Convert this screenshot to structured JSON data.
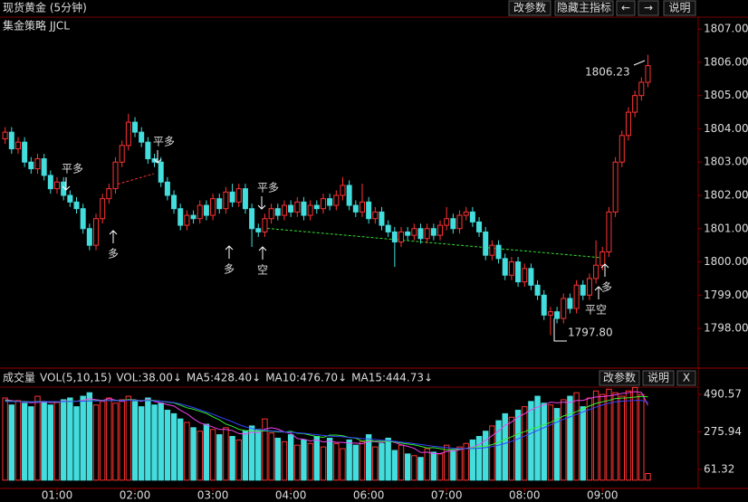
{
  "chart_data": [
    {
      "type": "candlestick",
      "title": "现货黄金 (5分钟)",
      "subtitle": "集金策略 JJCL",
      "buttons": [
        "改参数",
        "隐藏主指标",
        "←",
        "→",
        "说明"
      ],
      "up_color": "#ff3333",
      "down_color": "#44dddd",
      "categories": [
        null,
        null,
        null,
        null,
        null,
        null,
        null,
        null,
        "01:00",
        null,
        null,
        null,
        null,
        null,
        null,
        null,
        null,
        null,
        null,
        null,
        "02:00",
        null,
        null,
        null,
        null,
        null,
        null,
        null,
        null,
        null,
        null,
        null,
        "03:00",
        null,
        null,
        null,
        null,
        null,
        null,
        null,
        null,
        null,
        null,
        null,
        "04:00",
        null,
        null,
        null,
        null,
        null,
        null,
        null,
        null,
        null,
        null,
        null,
        "06:00",
        null,
        null,
        null,
        null,
        null,
        null,
        null,
        null,
        null,
        null,
        null,
        "07:00",
        null,
        null,
        null,
        null,
        null,
        null,
        null,
        null,
        null,
        null,
        null,
        "08:00",
        null,
        null,
        null,
        null,
        null,
        null,
        null,
        null,
        null,
        null,
        null,
        "09:00",
        null,
        null,
        null,
        null,
        null,
        null,
        null
      ],
      "open": [
        1803.7,
        1803.9,
        1803.4,
        1803.6,
        1803.0,
        1802.8,
        1803.1,
        1802.6,
        1802.2,
        1802.4,
        1802.0,
        1801.8,
        1801.6,
        1801.0,
        1800.5,
        1801.3,
        1801.9,
        1802.2,
        1803.0,
        1803.5,
        1804.2,
        1803.9,
        1803.6,
        1803.1,
        1803.0,
        1802.4,
        1802.0,
        1801.6,
        1801.1,
        1801.4,
        1801.3,
        1801.7,
        1801.4,
        1801.9,
        1801.6,
        1802.1,
        1801.8,
        1802.2,
        1801.6,
        1801.0,
        1800.9,
        1801.3,
        1801.6,
        1801.4,
        1801.7,
        1801.5,
        1801.8,
        1801.4,
        1801.7,
        1801.6,
        1801.9,
        1801.7,
        1802.0,
        1802.3,
        1801.7,
        1801.5,
        1801.8,
        1801.3,
        1801.5,
        1801.1,
        1800.9,
        1800.6,
        1800.9,
        1800.8,
        1801.0,
        1800.7,
        1801.0,
        1800.8,
        1801.1,
        1801.3,
        1801.0,
        1801.4,
        1801.5,
        1801.2,
        1800.9,
        1800.2,
        1800.5,
        1800.1,
        1799.6,
        1800.0,
        1799.4,
        1799.8,
        1799.3,
        1799.0,
        1798.4,
        1798.5,
        1798.3,
        1798.9,
        1798.6,
        1799.3,
        1799.0,
        1799.5,
        1799.9,
        1800.3,
        1801.5,
        1803.0,
        1803.8,
        1804.5,
        1805.0,
        1805.4
      ],
      "high": [
        1804.05,
        1804.05,
        1803.75,
        1803.75,
        1803.15,
        1803.25,
        1803.25,
        1802.75,
        1802.55,
        1802.55,
        1802.15,
        1801.95,
        1801.75,
        1801.15,
        1801.45,
        1802.05,
        1802.35,
        1803.15,
        1803.65,
        1804.45,
        1804.35,
        1804.05,
        1803.75,
        1803.25,
        1803.15,
        1802.55,
        1802.15,
        1801.75,
        1801.55,
        1801.55,
        1801.85,
        1801.85,
        1802.05,
        1802.05,
        1802.25,
        1802.35,
        1802.35,
        1802.35,
        1801.75,
        1801.15,
        1801.45,
        1801.75,
        1801.75,
        1801.85,
        1801.85,
        1801.95,
        1801.95,
        1801.85,
        1801.85,
        1802.05,
        1802.05,
        1802.15,
        1802.55,
        1802.45,
        1801.85,
        1802.35,
        1801.95,
        1801.65,
        1801.65,
        1801.25,
        1801.05,
        1801.05,
        1801.05,
        1801.15,
        1801.15,
        1801.15,
        1801.15,
        1801.25,
        1801.65,
        1801.45,
        1801.55,
        1801.65,
        1801.65,
        1801.35,
        1801.05,
        1800.65,
        1800.65,
        1800.25,
        1800.15,
        1800.15,
        1799.95,
        1799.95,
        1799.45,
        1799.15,
        1798.65,
        1798.65,
        1799.05,
        1799.05,
        1799.45,
        1799.45,
        1799.65,
        1800.65,
        1800.45,
        1801.65,
        1803.15,
        1803.95,
        1804.65,
        1805.15,
        1805.55,
        1806.23
      ],
      "low": [
        1803.55,
        1803.25,
        1803.25,
        1802.85,
        1802.65,
        1802.65,
        1802.45,
        1802.05,
        1802.05,
        1801.85,
        1801.65,
        1801.45,
        1800.85,
        1800.35,
        1800.35,
        1801.15,
        1801.75,
        1802.05,
        1802.85,
        1803.35,
        1803.75,
        1803.45,
        1802.95,
        1802.85,
        1802.25,
        1801.85,
        1801.45,
        1800.95,
        1800.95,
        1801.15,
        1801.15,
        1801.25,
        1801.25,
        1801.45,
        1801.45,
        1801.65,
        1801.65,
        1801.45,
        1800.45,
        1800.75,
        1800.75,
        1801.15,
        1801.25,
        1801.25,
        1801.35,
        1801.35,
        1801.25,
        1801.25,
        1801.45,
        1801.45,
        1801.55,
        1801.55,
        1801.85,
        1801.55,
        1801.35,
        1801.35,
        1801.15,
        1801.15,
        1800.95,
        1800.75,
        1799.85,
        1800.45,
        1800.65,
        1800.65,
        1800.55,
        1800.55,
        1800.65,
        1800.65,
        1800.95,
        1800.85,
        1800.85,
        1801.25,
        1801.05,
        1800.75,
        1800.05,
        1800.05,
        1799.95,
        1799.45,
        1799.45,
        1799.25,
        1799.25,
        1799.15,
        1798.85,
        1798.25,
        1797.8,
        1798.15,
        1798.15,
        1798.45,
        1798.45,
        1798.85,
        1798.85,
        1799.35,
        1799.75,
        1800.15,
        1801.35,
        1802.85,
        1803.65,
        1804.35,
        1804.85,
        1805.25
      ],
      "close": [
        1803.9,
        1803.4,
        1803.6,
        1803.0,
        1802.8,
        1803.1,
        1802.6,
        1802.2,
        1802.4,
        1802.0,
        1801.8,
        1801.6,
        1801.0,
        1800.5,
        1801.3,
        1801.9,
        1802.2,
        1803.0,
        1803.5,
        1804.2,
        1803.9,
        1803.6,
        1803.1,
        1803.0,
        1802.4,
        1802.0,
        1801.6,
        1801.1,
        1801.4,
        1801.3,
        1801.7,
        1801.4,
        1801.9,
        1801.6,
        1802.1,
        1801.8,
        1802.2,
        1801.6,
        1801.0,
        1800.9,
        1801.3,
        1801.6,
        1801.4,
        1801.7,
        1801.5,
        1801.8,
        1801.4,
        1801.7,
        1801.6,
        1801.9,
        1801.7,
        1802.0,
        1802.3,
        1801.7,
        1801.5,
        1801.8,
        1801.3,
        1801.5,
        1801.1,
        1800.9,
        1800.6,
        1800.9,
        1800.8,
        1801.0,
        1800.7,
        1801.0,
        1800.8,
        1801.1,
        1801.3,
        1801.0,
        1801.4,
        1801.5,
        1801.2,
        1800.9,
        1800.2,
        1800.5,
        1800.1,
        1799.6,
        1800.0,
        1799.4,
        1799.8,
        1799.3,
        1799.0,
        1798.4,
        1798.5,
        1798.3,
        1798.9,
        1798.6,
        1799.3,
        1799.0,
        1799.5,
        1799.9,
        1800.3,
        1801.5,
        1803.0,
        1803.8,
        1804.5,
        1805.0,
        1805.4,
        1805.9
      ],
      "extreme_labels": [
        "1806.23",
        "1797.80"
      ],
      "annotations": [
        {
          "text": "平多",
          "color": "#33ee33"
        },
        {
          "text": "多",
          "color": "#ff3333"
        },
        {
          "text": "平多",
          "color": "#33ee33"
        },
        {
          "text": "多",
          "color": "#ff3333"
        },
        {
          "text": "平多",
          "color": "#33ee33"
        },
        {
          "text": "空",
          "color": "#33ee33"
        },
        {
          "text": "多",
          "color": "#ff3333"
        },
        {
          "text": "平空",
          "color": "#ff3333"
        }
      ],
      "ylim": [
        1796.86,
        1807.33
      ],
      "yticks": [
        {
          "value": 1807,
          "label": "1807.00"
        },
        {
          "value": 1806,
          "label": "1806.00"
        },
        {
          "value": 1805,
          "label": "1805.00"
        },
        {
          "value": 1804,
          "label": "1804.00"
        },
        {
          "value": 1803,
          "label": "1803.00"
        },
        {
          "value": 1802,
          "label": "1802.00"
        },
        {
          "value": 1801,
          "label": "1801.00"
        },
        {
          "value": 1800,
          "label": "1800.00"
        },
        {
          "value": 1799,
          "label": "1799.00"
        },
        {
          "value": 1798,
          "label": "1798.00"
        }
      ]
    },
    {
      "type": "volume",
      "legend": [
        "成交量",
        "VOL(5,10,15)",
        "VOL:38.00↓",
        "MA5:428.40↓",
        "MA10:476.70↓",
        "MA15:444.73↓"
      ],
      "buttons": [
        "改参数",
        "说明",
        "X"
      ],
      "values": [
        470,
        430,
        455,
        440,
        420,
        480,
        450,
        430,
        445,
        460,
        470,
        420,
        480,
        500,
        430,
        450,
        470,
        440,
        460,
        480,
        450,
        420,
        470,
        430,
        440,
        400,
        380,
        350,
        330,
        300,
        280,
        320,
        290,
        260,
        300,
        250,
        230,
        280,
        310,
        290,
        350,
        270,
        240,
        220,
        260,
        200,
        230,
        210,
        250,
        190,
        240,
        210,
        180,
        230,
        200,
        220,
        260,
        190,
        210,
        240,
        170,
        200,
        150,
        140,
        130,
        180,
        160,
        150,
        200,
        170,
        190,
        210,
        230,
        250,
        280,
        310,
        340,
        380,
        360,
        400,
        420,
        450,
        480,
        440,
        430,
        410,
        460,
        480,
        500,
        420,
        470,
        510,
        490,
        520,
        500,
        480,
        510,
        530,
        490,
        38
      ],
      "series": [
        {
          "color": "#ee44ee",
          "values": [
            460,
            455,
            450,
            447,
            443,
            445,
            447,
            444,
            445,
            453,
            451,
            451,
            457,
            466,
            460,
            456,
            466,
            458,
            450,
            460,
            460,
            450,
            464,
            450,
            442,
            432,
            424,
            400,
            380,
            352,
            328,
            316,
            304,
            290,
            290,
            284,
            266,
            264,
            274,
            272,
            292,
            300,
            292,
            276,
            268,
            238,
            234,
            224,
            230,
            218,
            224,
            216,
            216,
            212,
            212,
            208,
            222,
            220,
            216,
            224,
            216,
            202,
            194,
            182,
            158,
            160,
            152,
            152,
            164,
            168,
            174,
            182,
            188,
            204,
            228,
            254,
            282,
            314,
            332,
            362,
            380,
            402,
            418,
            430,
            446,
            442,
            446,
            444,
            456,
            456,
            468,
            476,
            478,
            482,
            488,
            496,
            500,
            506,
            502,
            428.4
          ]
        },
        {
          "color": "#33ee33",
          "values": [
            455,
            452,
            450,
            450,
            448,
            450,
            450,
            448,
            448,
            450,
            452,
            452,
            453,
            455,
            455,
            455,
            456,
            456,
            457,
            460,
            458,
            455,
            458,
            456,
            452,
            446,
            442,
            429,
            414,
            406,
            394,
            382,
            362,
            345,
            321,
            308,
            291,
            284,
            282,
            281,
            282,
            280,
            276,
            275,
            280,
            268,
            266,
            258,
            249,
            245,
            258,
            258,
            254,
            244,
            240,
            223,
            228,
            222,
            223,
            221,
            220,
            212,
            207,
            202,
            194,
            184,
            186,
            180,
            173,
            176,
            178,
            181,
            185,
            193,
            193,
            203,
            217,
            233,
            248,
            265,
            277,
            292,
            303,
            317,
            330,
            348,
            367,
            378,
            392,
            409,
            424,
            439,
            448,
            456,
            467,
            469,
            471,
            475,
            479,
            476.7
          ]
        },
        {
          "color": "#3344ff",
          "values": [
            450,
            450,
            449,
            448,
            448,
            448,
            449,
            449,
            449,
            450,
            450,
            451,
            452,
            453,
            453,
            454,
            455,
            455,
            456,
            457,
            456,
            455,
            455,
            454,
            452,
            448,
            444,
            436,
            426,
            415,
            402,
            390,
            377,
            362,
            348,
            334,
            318,
            305,
            295,
            288,
            285,
            282,
            279,
            276,
            274,
            271,
            268,
            264,
            260,
            256,
            252,
            250,
            248,
            244,
            242,
            238,
            236,
            232,
            229,
            226,
            222,
            218,
            214,
            209,
            204,
            199,
            194,
            190,
            186,
            183,
            181,
            180,
            181,
            183,
            186,
            192,
            200,
            210,
            222,
            236,
            252,
            268,
            284,
            300,
            316,
            332,
            348,
            362,
            376,
            390,
            404,
            418,
            430,
            440,
            448,
            452,
            454,
            456,
            456,
            444.73
          ]
        }
      ],
      "ylim": [
        -37,
        532
      ],
      "yticks": [
        490.57,
        275.94,
        61.32
      ]
    }
  ]
}
